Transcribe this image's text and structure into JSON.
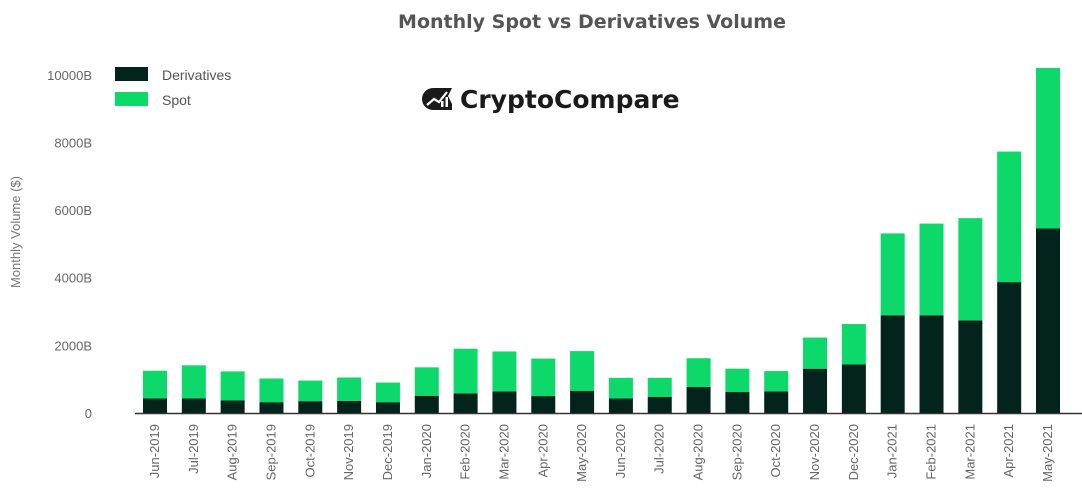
{
  "logo": {
    "brand_name": "CryptoCompare"
  },
  "colors": {
    "derivatives": "#03231d",
    "spot": "#0dd86a",
    "axis": "#333333",
    "tick_text": "#666666"
  },
  "chart_data": {
    "type": "bar",
    "stacked": true,
    "title": "Monthly Spot vs Derivatives Volume",
    "xlabel": "",
    "ylabel": "Monthly Volume ($)",
    "ylim": [
      0,
      10200
    ],
    "yticks": [
      0,
      2000,
      4000,
      6000,
      8000,
      10000
    ],
    "ytick_labels": [
      "0",
      "2000B",
      "4000B",
      "6000B",
      "8000B",
      "10000B"
    ],
    "grid": false,
    "legend_position": "top-left",
    "categories": [
      "Jun-2019",
      "Jul-2019",
      "Aug-2019",
      "Sep-2019",
      "Oct-2019",
      "Nov-2019",
      "Dec-2019",
      "Jan-2020",
      "Feb-2020",
      "Mar-2020",
      "Apr-2020",
      "May-2020",
      "Jun-2020",
      "Jul-2020",
      "Aug-2020",
      "Sep-2020",
      "Oct-2020",
      "Nov-2020",
      "Dec-2020",
      "Jan-2021",
      "Feb-2021",
      "Mar-2021",
      "Apr-2021",
      "May-2021"
    ],
    "series": [
      {
        "name": "Derivatives",
        "color": "#03231d",
        "values": [
          430,
          430,
          370,
          320,
          350,
          360,
          320,
          510,
          580,
          640,
          500,
          650,
          430,
          480,
          770,
          620,
          640,
          1310,
          1440,
          2890,
          2890,
          2740,
          3870,
          5460
        ]
      },
      {
        "name": "Spot",
        "color": "#0dd86a",
        "values": [
          820,
          980,
          860,
          700,
          610,
          690,
          580,
          840,
          1320,
          1180,
          1110,
          1180,
          610,
          560,
          850,
          690,
          600,
          920,
          1190,
          2420,
          2710,
          3020,
          3860,
          4740
        ]
      }
    ]
  }
}
